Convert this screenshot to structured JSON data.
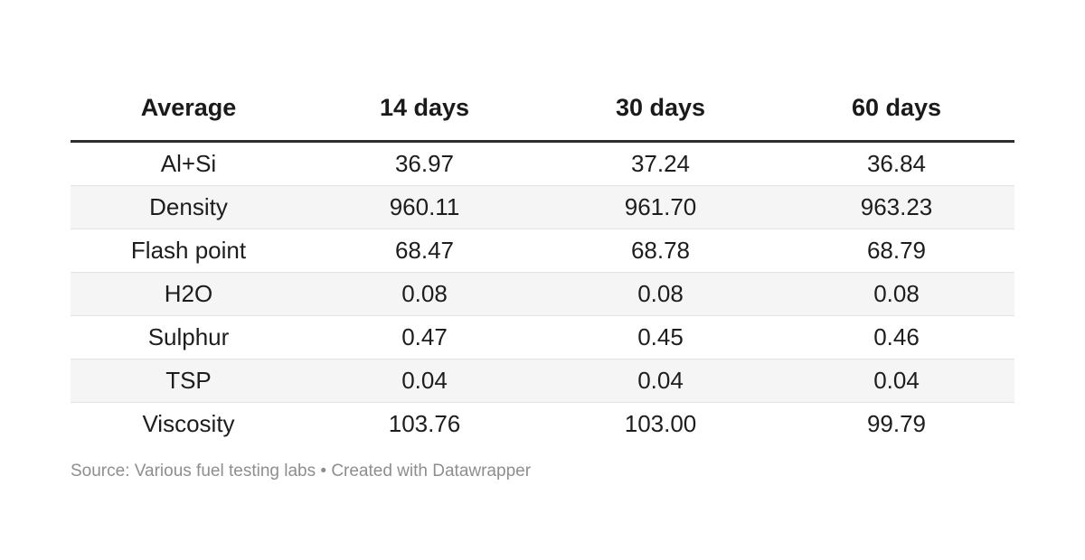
{
  "table": {
    "columns": [
      "Average",
      "14 days",
      "30 days",
      "60 days"
    ],
    "rows": [
      {
        "label": "Al+Si",
        "values": [
          "36.97",
          "37.24",
          "36.84"
        ]
      },
      {
        "label": "Density",
        "values": [
          "960.11",
          "961.70",
          "963.23"
        ]
      },
      {
        "label": "Flash point",
        "values": [
          "68.47",
          "68.78",
          "68.79"
        ]
      },
      {
        "label": "H2O",
        "values": [
          "0.08",
          "0.08",
          "0.08"
        ]
      },
      {
        "label": "Sulphur",
        "values": [
          "0.47",
          "0.45",
          "0.46"
        ]
      },
      {
        "label": "TSP",
        "values": [
          "0.04",
          "0.04",
          "0.04"
        ]
      },
      {
        "label": "Viscosity",
        "values": [
          "103.76",
          "103.00",
          "99.79"
        ]
      }
    ]
  },
  "footer": {
    "source_label": "Source:",
    "source_text": "Various fuel testing labs",
    "separator": "•",
    "attribution": "Created with Datawrapper"
  },
  "colors": {
    "header_rule": "#2e2e2e",
    "row_stripe": "#f5f5f5",
    "row_border": "#e3e3e3",
    "text": "#1d1d1d",
    "footer_text": "#8e8e8e",
    "background": "#ffffff"
  },
  "chart_data": {
    "type": "table",
    "title": "",
    "columns": [
      "Average",
      "14 days",
      "30 days",
      "60 days"
    ],
    "rows": [
      [
        "Al+Si",
        36.97,
        37.24,
        36.84
      ],
      [
        "Density",
        960.11,
        961.7,
        963.23
      ],
      [
        "Flash point",
        68.47,
        68.78,
        68.79
      ],
      [
        "H2O",
        0.08,
        0.08,
        0.08
      ],
      [
        "Sulphur",
        0.47,
        0.45,
        0.46
      ],
      [
        "TSP",
        0.04,
        0.04,
        0.04
      ],
      [
        "Viscosity",
        103.76,
        103.0,
        99.79
      ]
    ],
    "layout_hints": {
      "zebra_striped_rows": [
        "Density",
        "H2O",
        "TSP"
      ],
      "value_alignment": "center",
      "header_style": "bold with thick bottom rule"
    },
    "source": "Various fuel testing labs",
    "attribution": "Created with Datawrapper"
  }
}
